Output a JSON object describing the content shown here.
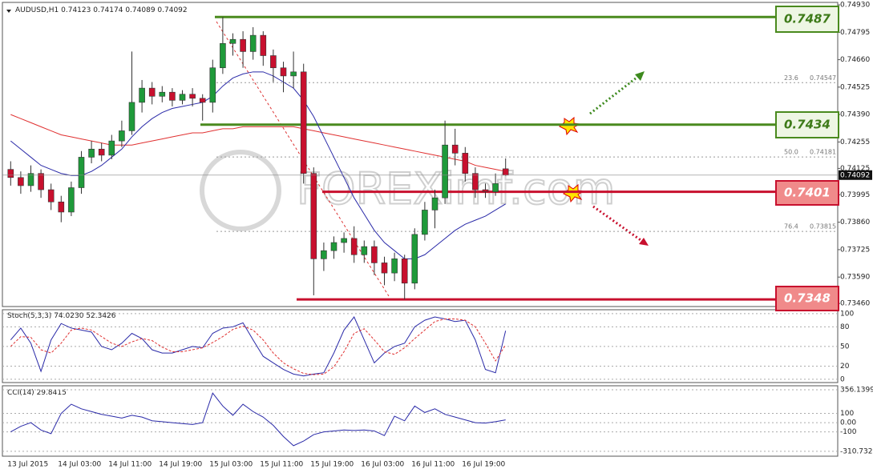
{
  "chart_data": [
    {
      "type": "candlestick",
      "title": "AUDUSD,H1",
      "categories": [
        "13 Jul 2015",
        null,
        null,
        null,
        null,
        "14 Jul 03:00",
        null,
        null,
        null,
        null,
        "14 Jul 11:00",
        null,
        null,
        null,
        null,
        "14 Jul 19:00",
        null,
        null,
        null,
        null,
        "15 Jul 03:00",
        null,
        null,
        null,
        null,
        "15 Jul 11:00",
        null,
        null,
        null,
        null,
        "15 Jul 19:00",
        null,
        null,
        null,
        null,
        "16 Jul 03:00",
        null,
        null,
        null,
        null,
        "16 Jul 11:00",
        null,
        null,
        null,
        null,
        "16 Jul 19:00",
        null,
        null,
        null,
        null
      ],
      "open": [
        0.7412,
        0.7408,
        0.7404,
        0.741,
        0.7402,
        0.7396,
        0.7391,
        0.7403,
        0.7418,
        0.7422,
        0.7419,
        0.7426,
        0.7431,
        0.7445,
        0.7452,
        0.7448,
        0.745,
        0.7446,
        0.7449,
        0.7447,
        0.7445,
        0.7462,
        0.7474,
        0.7476,
        0.747,
        0.7478,
        0.7468,
        0.7462,
        0.7458,
        0.746,
        0.741,
        0.7368,
        0.7372,
        0.7376,
        0.7378,
        0.737,
        0.7374,
        0.7366,
        0.7361,
        0.7368,
        0.7356,
        0.738,
        0.7392,
        0.7398,
        0.7424,
        0.742,
        0.741,
        0.7402,
        0.7401,
        0.74123
      ],
      "high": [
        0.7416,
        0.7411,
        0.7414,
        0.7412,
        0.7405,
        0.7399,
        0.7406,
        0.7421,
        0.7426,
        0.7425,
        0.7429,
        0.7436,
        0.747,
        0.7456,
        0.7455,
        0.7453,
        0.7452,
        0.7451,
        0.7452,
        0.7449,
        0.7466,
        0.7487,
        0.7479,
        0.748,
        0.7482,
        0.748,
        0.7471,
        0.7465,
        0.747,
        0.7464,
        0.7413,
        0.7376,
        0.7379,
        0.7381,
        0.7384,
        0.7377,
        0.7377,
        0.7369,
        0.7371,
        0.737,
        0.7383,
        0.7396,
        0.7402,
        0.7436,
        0.7432,
        0.7423,
        0.7413,
        0.7405,
        0.741,
        0.74174
      ],
      "low": [
        0.7404,
        0.74,
        0.7401,
        0.7398,
        0.7392,
        0.7386,
        0.7389,
        0.74,
        0.7415,
        0.7416,
        0.7417,
        0.7423,
        0.7429,
        0.744,
        0.7444,
        0.7445,
        0.7443,
        0.7444,
        0.7443,
        0.7436,
        0.744,
        0.7459,
        0.7468,
        0.7462,
        0.7466,
        0.7463,
        0.7455,
        0.745,
        0.7452,
        0.7405,
        0.735,
        0.7362,
        0.7368,
        0.7371,
        0.7366,
        0.7366,
        0.736,
        0.7355,
        0.7357,
        0.7348,
        0.7353,
        0.7377,
        0.7383,
        0.7395,
        0.7414,
        0.7406,
        0.7398,
        0.7398,
        0.7399,
        0.74089
      ],
      "close": [
        0.7408,
        0.7404,
        0.741,
        0.7402,
        0.7396,
        0.7391,
        0.7403,
        0.7418,
        0.7422,
        0.7419,
        0.7426,
        0.7431,
        0.7445,
        0.7452,
        0.7448,
        0.745,
        0.7446,
        0.7449,
        0.7447,
        0.7445,
        0.7462,
        0.7474,
        0.7476,
        0.747,
        0.7478,
        0.7468,
        0.7462,
        0.7458,
        0.746,
        0.741,
        0.7368,
        0.7372,
        0.7376,
        0.7378,
        0.737,
        0.7374,
        0.7366,
        0.7361,
        0.7368,
        0.7356,
        0.738,
        0.7392,
        0.7398,
        0.7424,
        0.742,
        0.741,
        0.7402,
        0.7401,
        0.7405,
        0.74092
      ],
      "bull_color": "#1f9a3a",
      "bear_color": "#c8102e",
      "series": [
        {
          "color": "#e03030",
          "values": [
            0.7439,
            0.7437,
            0.7435,
            0.7433,
            0.7431,
            0.7429,
            0.7428,
            0.7427,
            0.7426,
            0.7425,
            0.7424,
            0.7424,
            0.7424,
            0.7425,
            0.7426,
            0.7427,
            0.7428,
            0.7429,
            0.743,
            0.743,
            0.7431,
            0.7432,
            0.7432,
            0.7433,
            0.7433,
            0.7433,
            0.7433,
            0.7433,
            0.7433,
            0.7432,
            0.7431,
            0.743,
            0.7429,
            0.7428,
            0.7427,
            0.7426,
            0.7425,
            0.7424,
            0.7423,
            0.7422,
            0.7421,
            0.742,
            0.7419,
            0.7418,
            0.7417,
            0.7416,
            0.7414,
            0.7413,
            0.7412,
            0.7411
          ]
        },
        {
          "color": "#2a2aa8",
          "values": [
            0.7426,
            0.7422,
            0.7418,
            0.7414,
            0.7412,
            0.741,
            0.7409,
            0.7409,
            0.7411,
            0.7414,
            0.7418,
            0.7422,
            0.7428,
            0.7433,
            0.7437,
            0.744,
            0.7442,
            0.7443,
            0.7444,
            0.7445,
            0.7448,
            0.7453,
            0.7457,
            0.7459,
            0.746,
            0.746,
            0.7458,
            0.7455,
            0.7452,
            0.7446,
            0.7438,
            0.7428,
            0.7418,
            0.7408,
            0.7398,
            0.739,
            0.7382,
            0.7376,
            0.7372,
            0.7368,
            0.7368,
            0.737,
            0.7374,
            0.7378,
            0.7382,
            0.7385,
            0.7387,
            0.7389,
            0.7392,
            0.7395
          ]
        }
      ],
      "ylim": [
        0.73445,
        0.74942
      ],
      "yticks": [
        {
          "value": 0.7493,
          "label": "0.74930"
        },
        0.74795,
        {
          "value": 0.7466,
          "label": "0.74660"
        },
        0.74525,
        {
          "value": 0.7439,
          "label": "0.74390"
        },
        0.74255,
        0.74125,
        0.73995,
        {
          "value": 0.7386,
          "label": "0.73860"
        },
        0.73725,
        {
          "value": 0.7359,
          "label": "0.73590"
        },
        {
          "value": 0.7346,
          "label": "0.73460"
        }
      ],
      "levels": [
        {
          "value": 0.7487,
          "color": "#4a8a1e"
        },
        {
          "value": 0.7434,
          "color": "#4a8a1e"
        },
        {
          "value": 0.7401,
          "color": "#c8102e"
        },
        {
          "value": 0.7348,
          "color": "#c8102e"
        }
      ],
      "fib": [
        {
          "level": 23.6,
          "price": 0.74547
        },
        {
          "level": {
            "value": 50,
            "label": "50.0"
          },
          "price": 0.74181
        },
        {
          "level": 76.4,
          "price": 0.73815
        }
      ],
      "watermark": "FOREXimf.com"
    },
    {
      "type": "line",
      "title": "Stoch(5,3,3)",
      "readings": [
        {
          "value": 74.023,
          "label": "74.0230"
        },
        52.3426
      ],
      "ylim": [
        -5,
        106
      ],
      "yticks": [
        100,
        80,
        50,
        20,
        0
      ],
      "series": [
        {
          "color": "#2a2aa8",
          "values": [
            60,
            78,
            55,
            12,
            60,
            85,
            78,
            75,
            72,
            50,
            45,
            55,
            70,
            62,
            45,
            40,
            40,
            45,
            50,
            48,
            70,
            78,
            80,
            86,
            60,
            35,
            25,
            15,
            8,
            5,
            8,
            10,
            40,
            75,
            95,
            60,
            25,
            40,
            50,
            55,
            80,
            90,
            95,
            92,
            88,
            90,
            60,
            15,
            10,
            74.023
          ]
        },
        {
          "color": "#e03030",
          "dashed": true,
          "values": [
            50,
            65,
            64,
            45,
            40,
            55,
            75,
            78,
            75,
            65,
            55,
            50,
            57,
            62,
            59,
            49,
            42,
            42,
            45,
            48,
            56,
            65,
            76,
            81,
            75,
            60,
            40,
            25,
            16,
            9,
            7,
            8,
            19,
            42,
            70,
            77,
            60,
            42,
            38,
            48,
            62,
            75,
            88,
            92,
            92,
            90,
            80,
            55,
            28,
            52.3426
          ]
        }
      ]
    },
    {
      "type": "line",
      "title": "CCI(14)",
      "readings": [
        29.8415
      ],
      "ylim": [
        -364,
        400
      ],
      "yticks": [
        356.1399,
        100,
        {
          "value": 0,
          "label": "0.00"
        },
        -100,
        -310.7326
      ],
      "series": [
        {
          "color": "#2a2aa8",
          "values": [
            -100,
            -40,
            0,
            -80,
            -120,
            100,
            200,
            150,
            120,
            90,
            70,
            50,
            80,
            60,
            20,
            10,
            0,
            -10,
            -20,
            0,
            320,
            180,
            80,
            200,
            120,
            60,
            -30,
            -150,
            -250,
            -200,
            -130,
            -100,
            -90,
            -80,
            -85,
            -80,
            -90,
            -140,
            70,
            20,
            180,
            110,
            150,
            90,
            60,
            30,
            0,
            -5,
            10,
            29.8415
          ]
        }
      ]
    }
  ]
}
